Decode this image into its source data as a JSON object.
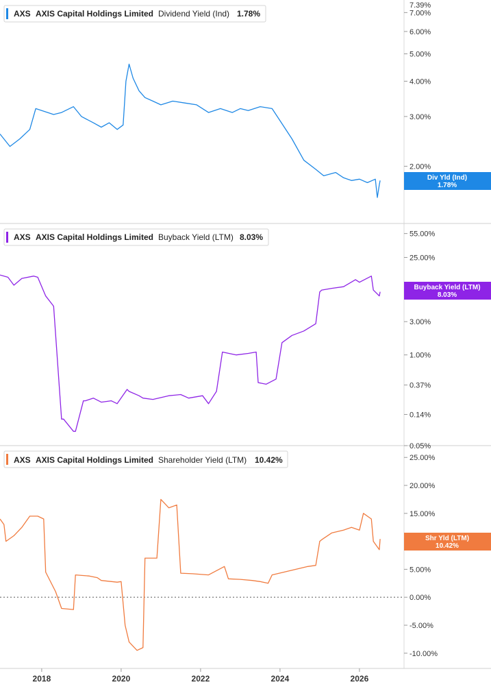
{
  "colors": {
    "dividend": "#1e88e5",
    "buyback": "#8e24e6",
    "shareholder": "#f07b3f"
  },
  "x_axis": {
    "ticks": [
      "2018",
      "2020",
      "2022",
      "2024",
      "2026"
    ],
    "range": [
      2016.95,
      2026.95
    ]
  },
  "panels": [
    {
      "ticker": "AXS",
      "company": "AXIS Capital Holdings Limited",
      "metric": "Dividend Yield (Ind)",
      "value": "1.78%",
      "tag_line1": "Div Yld (Ind)",
      "tag_line2": "1.78%",
      "extra_tick": "7.39%"
    },
    {
      "ticker": "AXS",
      "company": "AXIS Capital Holdings Limited",
      "metric": "Buyback Yield (LTM)",
      "value": "8.03%",
      "tag_line1": "Buyback Yield (LTM)",
      "tag_line2": "8.03%"
    },
    {
      "ticker": "AXS",
      "company": "AXIS Capital Holdings Limited",
      "metric": "Shareholder Yield (LTM)",
      "value": "10.42%",
      "tag_line1": "Shr Yld (LTM)",
      "tag_line2": "10.42%"
    }
  ],
  "chart_data": [
    {
      "type": "line",
      "title": "AXS AXIS Capital Holdings Limited Dividend Yield (Ind) 1.78%",
      "yscale": "log",
      "ylim": [
        1.45,
        7.5
      ],
      "yticks": [
        7.0,
        6.0,
        5.0,
        4.0,
        3.0,
        2.0
      ],
      "ytick_labels": [
        "7.00%",
        "6.00%",
        "5.00%",
        "4.00%",
        "3.00%",
        "2.00%"
      ],
      "series": [
        {
          "x": [
            2016.95,
            2017.2,
            2017.45,
            2017.7,
            2017.85,
            2018.0,
            2018.3,
            2018.5,
            2018.8,
            2019.0,
            2019.3,
            2019.5,
            2019.7,
            2019.9,
            2020.05,
            2020.12,
            2020.2,
            2020.3,
            2020.45,
            2020.6,
            2020.8,
            2021.0,
            2021.3,
            2021.6,
            2021.9,
            2022.2,
            2022.5,
            2022.8,
            2023.0,
            2023.2,
            2023.5,
            2023.8,
            2024.0,
            2024.3,
            2024.6,
            2024.9,
            2025.1,
            2025.4,
            2025.6,
            2025.8,
            2026.0,
            2026.2,
            2026.4,
            2026.45,
            2026.5,
            2026.52
          ],
          "y": [
            2.6,
            2.35,
            2.5,
            2.7,
            3.2,
            3.15,
            3.05,
            3.1,
            3.25,
            3.0,
            2.85,
            2.75,
            2.85,
            2.7,
            2.8,
            4.0,
            4.6,
            4.1,
            3.7,
            3.5,
            3.4,
            3.3,
            3.4,
            3.35,
            3.3,
            3.1,
            3.2,
            3.1,
            3.2,
            3.15,
            3.25,
            3.2,
            2.9,
            2.5,
            2.1,
            1.95,
            1.85,
            1.9,
            1.82,
            1.78,
            1.8,
            1.75,
            1.8,
            1.55,
            1.72,
            1.78
          ]
        }
      ]
    },
    {
      "type": "line",
      "title": "AXS AXIS Capital Holdings Limited Buyback Yield (LTM) 8.03%",
      "yscale": "log",
      "ylim": [
        0.05,
        70
      ],
      "yticks": [
        55.0,
        25.0,
        3.0,
        1.0,
        0.37,
        0.14,
        0.05
      ],
      "ytick_labels": [
        "55.00%",
        "25.00%",
        "3.00%",
        "1.00%",
        "0.37%",
        "0.14%",
        "0.05%"
      ],
      "series": [
        {
          "x": [
            2016.95,
            2017.15,
            2017.3,
            2017.5,
            2017.8,
            2017.9,
            2018.1,
            2018.3,
            2018.5,
            2018.55,
            2018.8,
            2018.85,
            2019.05,
            2019.1,
            2019.3,
            2019.5,
            2019.75,
            2019.9,
            2020.15,
            2020.2,
            2020.45,
            2020.55,
            2020.8,
            2021.2,
            2021.5,
            2021.7,
            2022.05,
            2022.2,
            2022.4,
            2022.55,
            2022.9,
            2023.2,
            2023.4,
            2023.45,
            2023.65,
            2023.9,
            2024.05,
            2024.3,
            2024.6,
            2024.9,
            2025.0,
            2025.05,
            2025.3,
            2025.6,
            2025.9,
            2026.0,
            2026.3,
            2026.35,
            2026.5,
            2026.52
          ],
          "y": [
            14.0,
            13.0,
            10.0,
            12.5,
            13.5,
            13.0,
            7.0,
            5.0,
            0.12,
            0.12,
            0.08,
            0.08,
            0.22,
            0.22,
            0.24,
            0.21,
            0.22,
            0.2,
            0.32,
            0.3,
            0.26,
            0.24,
            0.23,
            0.26,
            0.27,
            0.24,
            0.26,
            0.2,
            0.3,
            1.1,
            1.0,
            1.05,
            1.1,
            0.4,
            0.38,
            0.45,
            1.5,
            1.9,
            2.2,
            2.8,
            8.0,
            8.5,
            9.0,
            9.5,
            12.0,
            11.0,
            13.5,
            8.5,
            7.0,
            8.03
          ]
        }
      ]
    },
    {
      "type": "line",
      "title": "AXS AXIS Capital Holdings Limited Shareholder Yield (LTM) 10.42%",
      "yscale": "linear",
      "ylim": [
        -11.5,
        26.5
      ],
      "yticks": [
        25.0,
        20.0,
        15.0,
        10.0,
        5.0,
        0.0,
        -5.0,
        -10.0
      ],
      "ytick_labels": [
        "25.00%",
        "20.00%",
        "15.00%",
        "10.00%",
        "5.00%",
        "0.00%",
        "-5.00%",
        "-10.00%"
      ],
      "reference_line": 0,
      "series": [
        {
          "x": [
            2016.95,
            2017.05,
            2017.1,
            2017.3,
            2017.5,
            2017.7,
            2017.9,
            2018.05,
            2018.1,
            2018.35,
            2018.5,
            2018.8,
            2018.85,
            2019.2,
            2019.4,
            2019.5,
            2019.9,
            2020.0,
            2020.1,
            2020.2,
            2020.4,
            2020.55,
            2020.6,
            2020.9,
            2021.0,
            2021.2,
            2021.4,
            2021.5,
            2021.8,
            2022.2,
            2022.6,
            2022.7,
            2023.0,
            2023.3,
            2023.5,
            2023.7,
            2023.8,
            2024.1,
            2024.4,
            2024.7,
            2024.9,
            2025.0,
            2025.05,
            2025.3,
            2025.6,
            2025.8,
            2026.0,
            2026.1,
            2026.3,
            2026.35,
            2026.5,
            2026.52
          ],
          "y": [
            14.0,
            13.0,
            10.0,
            11.0,
            12.5,
            14.5,
            14.5,
            14.0,
            4.5,
            1.0,
            -2.0,
            -2.2,
            4.0,
            3.8,
            3.5,
            3.0,
            2.7,
            2.8,
            -5.0,
            -8.0,
            -9.5,
            -9.0,
            7.0,
            7.0,
            17.5,
            16.0,
            16.5,
            4.3,
            4.2,
            4.0,
            5.5,
            3.3,
            3.2,
            3.0,
            2.8,
            2.5,
            4.0,
            4.5,
            5.0,
            5.5,
            5.7,
            10.0,
            10.3,
            11.5,
            12.0,
            12.5,
            12.0,
            15.0,
            14.0,
            10.0,
            8.5,
            10.42
          ]
        }
      ]
    }
  ]
}
